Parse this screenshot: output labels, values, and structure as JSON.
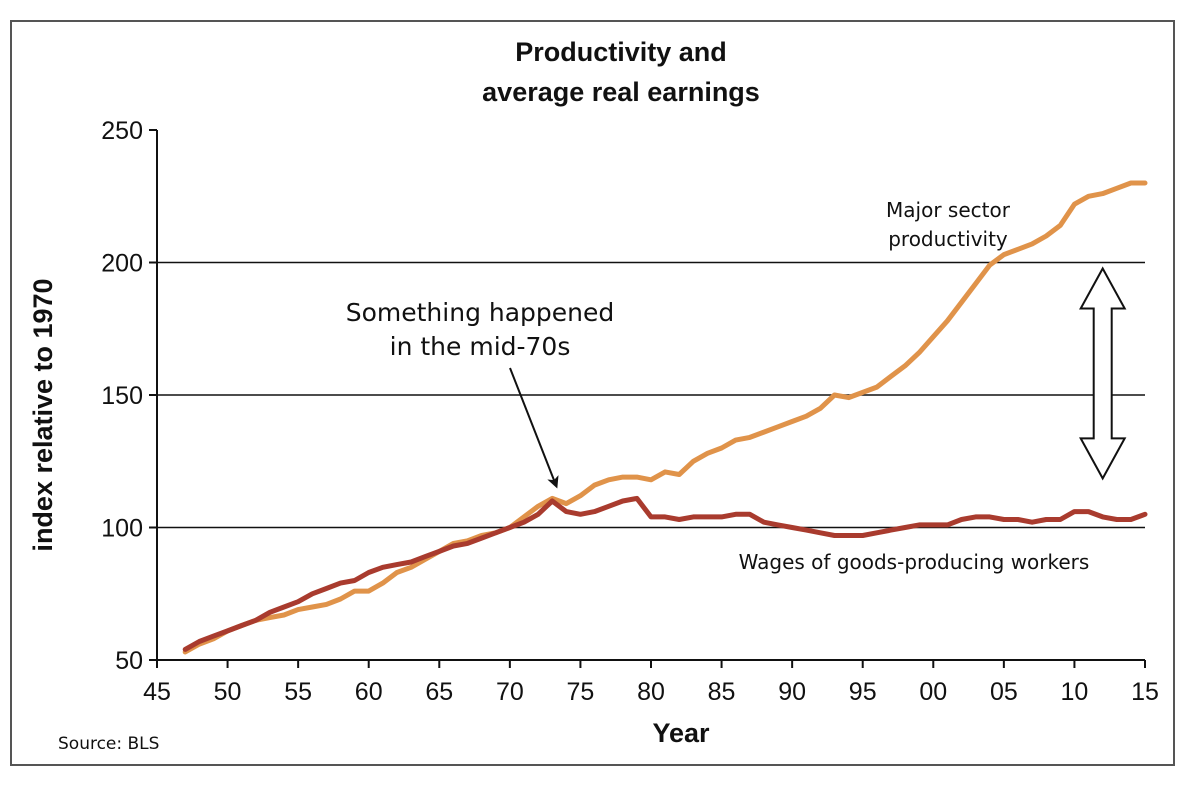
{
  "chart_data": {
    "type": "line",
    "title_lines": [
      "Productivity and",
      "average real earnings"
    ],
    "xlabel": "Year",
    "ylabel": "index relative to 1970",
    "xlim": [
      1945,
      2015
    ],
    "ylim": [
      50,
      250
    ],
    "x_ticks": [
      {
        "year": 1945,
        "label": "45"
      },
      {
        "year": 1950,
        "label": "50"
      },
      {
        "year": 1955,
        "label": "55"
      },
      {
        "year": 1960,
        "label": "60"
      },
      {
        "year": 1965,
        "label": "65"
      },
      {
        "year": 1970,
        "label": "70"
      },
      {
        "year": 1975,
        "label": "75"
      },
      {
        "year": 1980,
        "label": "80"
      },
      {
        "year": 1985,
        "label": "85"
      },
      {
        "year": 1990,
        "label": "90"
      },
      {
        "year": 1995,
        "label": "95"
      },
      {
        "year": 2000,
        "label": "00"
      },
      {
        "year": 2005,
        "label": "05"
      },
      {
        "year": 2010,
        "label": "10"
      },
      {
        "year": 2015,
        "label": "15"
      }
    ],
    "y_ticks": [
      50,
      100,
      150,
      200,
      250
    ],
    "gridlines_y": [
      100,
      150,
      200
    ],
    "source": "Source: BLS",
    "series": [
      {
        "name": "Major sector productivity",
        "label_lines": [
          "Major sector",
          "productivity"
        ],
        "color": "#e0934a",
        "x": [
          1947,
          1948,
          1949,
          1950,
          1951,
          1952,
          1953,
          1954,
          1955,
          1956,
          1957,
          1958,
          1959,
          1960,
          1961,
          1962,
          1963,
          1964,
          1965,
          1966,
          1967,
          1968,
          1969,
          1970,
          1971,
          1972,
          1973,
          1974,
          1975,
          1976,
          1977,
          1978,
          1979,
          1980,
          1981,
          1982,
          1983,
          1984,
          1985,
          1986,
          1987,
          1988,
          1989,
          1990,
          1991,
          1992,
          1993,
          1994,
          1995,
          1996,
          1997,
          1998,
          1999,
          2000,
          2001,
          2002,
          2003,
          2004,
          2005,
          2006,
          2007,
          2008,
          2009,
          2010,
          2011,
          2012,
          2013,
          2014,
          2015
        ],
        "y": [
          53,
          56,
          58,
          61,
          63,
          65,
          66,
          67,
          69,
          70,
          71,
          73,
          76,
          76,
          79,
          83,
          85,
          88,
          91,
          94,
          95,
          97,
          98,
          100,
          104,
          108,
          111,
          109,
          112,
          116,
          118,
          119,
          119,
          118,
          121,
          120,
          125,
          128,
          130,
          133,
          134,
          136,
          138,
          140,
          142,
          145,
          150,
          149,
          151,
          153,
          157,
          161,
          166,
          172,
          178,
          185,
          192,
          199,
          203,
          205,
          207,
          210,
          214,
          222,
          225,
          226,
          228,
          230,
          230
        ]
      },
      {
        "name": "Wages of goods-producing workers",
        "label_lines": [
          "Wages of goods-producing workers"
        ],
        "color": "#a93b2e",
        "x": [
          1947,
          1948,
          1949,
          1950,
          1951,
          1952,
          1953,
          1954,
          1955,
          1956,
          1957,
          1958,
          1959,
          1960,
          1961,
          1962,
          1963,
          1964,
          1965,
          1966,
          1967,
          1968,
          1969,
          1970,
          1971,
          1972,
          1973,
          1974,
          1975,
          1976,
          1977,
          1978,
          1979,
          1980,
          1981,
          1982,
          1983,
          1984,
          1985,
          1986,
          1987,
          1988,
          1989,
          1990,
          1991,
          1992,
          1993,
          1994,
          1995,
          1996,
          1997,
          1998,
          1999,
          2000,
          2001,
          2002,
          2003,
          2004,
          2005,
          2006,
          2007,
          2008,
          2009,
          2010,
          2011,
          2012,
          2013,
          2014,
          2015
        ],
        "y": [
          54,
          57,
          59,
          61,
          63,
          65,
          68,
          70,
          72,
          75,
          77,
          79,
          80,
          83,
          85,
          86,
          87,
          89,
          91,
          93,
          94,
          96,
          98,
          100,
          102,
          105,
          110,
          106,
          105,
          106,
          108,
          110,
          111,
          104,
          104,
          103,
          104,
          104,
          104,
          105,
          105,
          102,
          101,
          100,
          99,
          98,
          97,
          97,
          97,
          98,
          99,
          100,
          101,
          101,
          101,
          103,
          104,
          104,
          103,
          103,
          102,
          103,
          103,
          106,
          106,
          104,
          103,
          103,
          105
        ]
      }
    ],
    "annotations": {
      "mid70s_lines": [
        "Something happened",
        "in the mid-70s"
      ],
      "mid70s_target": {
        "x": 1973,
        "y": 112
      },
      "gap_arrow": {
        "x": 2012,
        "y_top": 200,
        "y_bottom": 117
      }
    }
  }
}
